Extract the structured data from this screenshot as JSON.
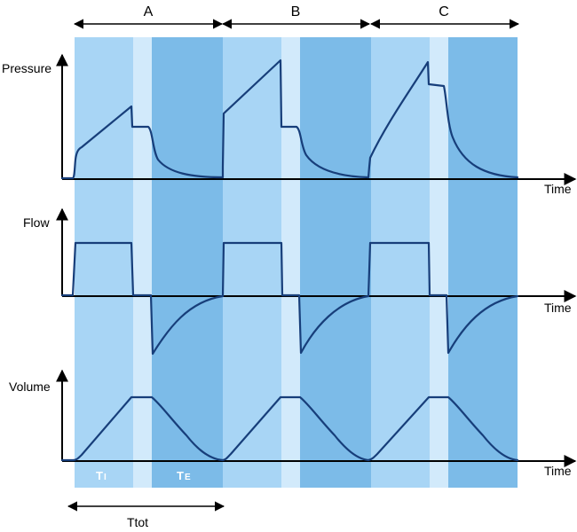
{
  "labels": {
    "pressure": "Pressure",
    "flow": "Flow",
    "volume": "Volume",
    "time": "Time",
    "ttot": "Ttot",
    "ti_main": "T",
    "ti_sub": "I",
    "te_main": "T",
    "te_sub": "E"
  },
  "segments": [
    {
      "label": "A"
    },
    {
      "label": "B"
    },
    {
      "label": "C"
    }
  ],
  "colors": {
    "inspiration": "#a8d5f5",
    "pause": "#d2eafb",
    "expiration": "#7cbbe8",
    "curve": "#173e7a",
    "axis": "#000000"
  }
}
